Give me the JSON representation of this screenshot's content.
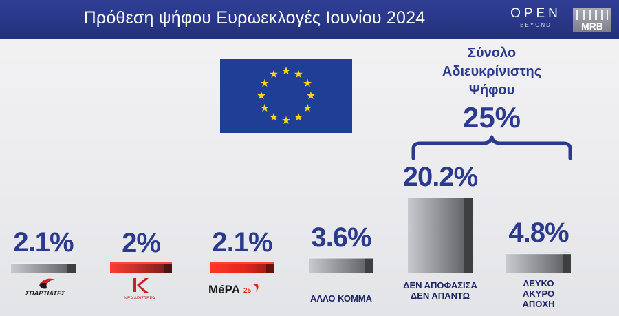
{
  "header": {
    "title": "Πρόθεση ψήφου Ευρωεκλογές Ιουνίου 2024",
    "logo_open": "OPEN",
    "logo_open_sub": "BEYOND",
    "logo_mrb": "MRB"
  },
  "summary": {
    "label_lines": [
      "Σύνολο",
      "Αδιευκρίνιστης",
      "Ψήφου"
    ],
    "value": "25%"
  },
  "party_logos": {
    "spartiates": "ΣΠΑΡΤΙΑΤΕΣ",
    "nea_aristera": "ΝΕΑ ΑΡΙΣΤΕΡΑ",
    "mera25_main": "MéPA",
    "mera25_num": "25"
  },
  "colors": {
    "accent": "#2c3a8e",
    "flag_blue": "#1f3f97",
    "flag_star": "#ffd617",
    "bar_gray": "#8a8b8f",
    "bar_red": "#b02a25",
    "bar_bright_red": "#e1261c"
  },
  "chart_data": {
    "type": "bar",
    "categories": [
      "ΣΠΑΡΤΙΑΤΕΣ",
      "ΝΕΑ ΑΡΙΣΤΕΡΑ",
      "ΜέΡΑ25",
      "ΑΛΛΟ ΚΟΜΜΑ",
      "ΔΕΝ ΑΠΟΦΑΣΙΣΑ ΔΕΝ ΑΠΑΝΤΩ",
      "ΛΕΥΚΟ ΑΚΥΡΟ ΑΠΟΧΗ"
    ],
    "values": [
      2.1,
      2,
      2.1,
      3.6,
      20.2,
      4.8
    ],
    "value_labels": [
      "2.1%",
      "2%",
      "2.1%",
      "3.6%",
      "20.2%",
      "4.8%"
    ],
    "category_text": [
      [],
      [],
      [],
      [
        "ΑΛΛΟ ΚΟΜΜΑ"
      ],
      [
        "ΔΕΝ ΑΠΟΦΑΣΙΣΑ",
        "ΔΕΝ ΑΠΑΝΤΩ"
      ],
      [
        "ΛΕΥΚΟ",
        "ΑΚΥΡΟ",
        "ΑΠΟΧΗ"
      ]
    ],
    "bar_colors": [
      "#8a8b8f",
      "#b02a25",
      "#e1261c",
      "#8a8b8f",
      "#8a8b8f",
      "#8a8b8f"
    ],
    "annotation": {
      "label": "Σύνολο Αδιευκρίνιστης Ψήφου",
      "value": "25%",
      "spans": [
        4,
        5
      ]
    },
    "ylim": [
      0,
      22
    ],
    "grid": false,
    "title": "Πρόθεση ψήφου Ευρωεκλογές Ιουνίου 2024"
  }
}
